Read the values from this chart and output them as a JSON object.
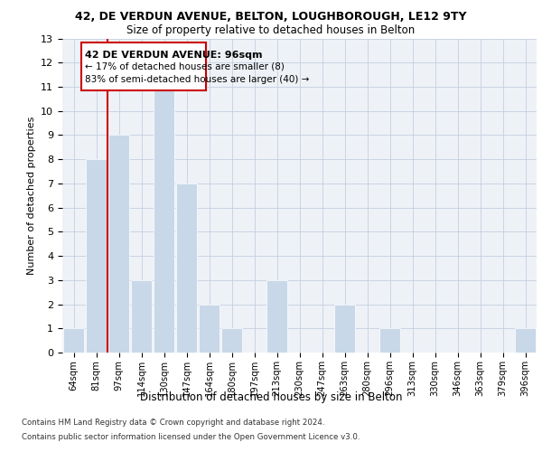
{
  "title1": "42, DE VERDUN AVENUE, BELTON, LOUGHBOROUGH, LE12 9TY",
  "title2": "Size of property relative to detached houses in Belton",
  "xlabel": "Distribution of detached houses by size in Belton",
  "ylabel": "Number of detached properties",
  "categories": [
    "64sqm",
    "81sqm",
    "97sqm",
    "114sqm",
    "130sqm",
    "147sqm",
    "164sqm",
    "180sqm",
    "197sqm",
    "213sqm",
    "230sqm",
    "247sqm",
    "263sqm",
    "280sqm",
    "296sqm",
    "313sqm",
    "330sqm",
    "346sqm",
    "363sqm",
    "379sqm",
    "396sqm"
  ],
  "values": [
    1,
    8,
    9,
    3,
    11,
    7,
    2,
    1,
    0,
    3,
    0,
    0,
    2,
    0,
    1,
    0,
    0,
    0,
    0,
    0,
    1
  ],
  "bar_color": "#c8d8e8",
  "red_line_color": "#cc0000",
  "box_edge_color": "#cc0000",
  "annotation_line1": "42 DE VERDUN AVENUE: 96sqm",
  "annotation_line2": "← 17% of detached houses are smaller (8)",
  "annotation_line3": "83% of semi-detached houses are larger (40) →",
  "ylim": [
    0,
    13
  ],
  "yticks": [
    0,
    1,
    2,
    3,
    4,
    5,
    6,
    7,
    8,
    9,
    10,
    11,
    12,
    13
  ],
  "footer1": "Contains HM Land Registry data © Crown copyright and database right 2024.",
  "footer2": "Contains public sector information licensed under the Open Government Licence v3.0.",
  "bg_color": "#eef2f7",
  "grid_color": "#c5cfe0"
}
